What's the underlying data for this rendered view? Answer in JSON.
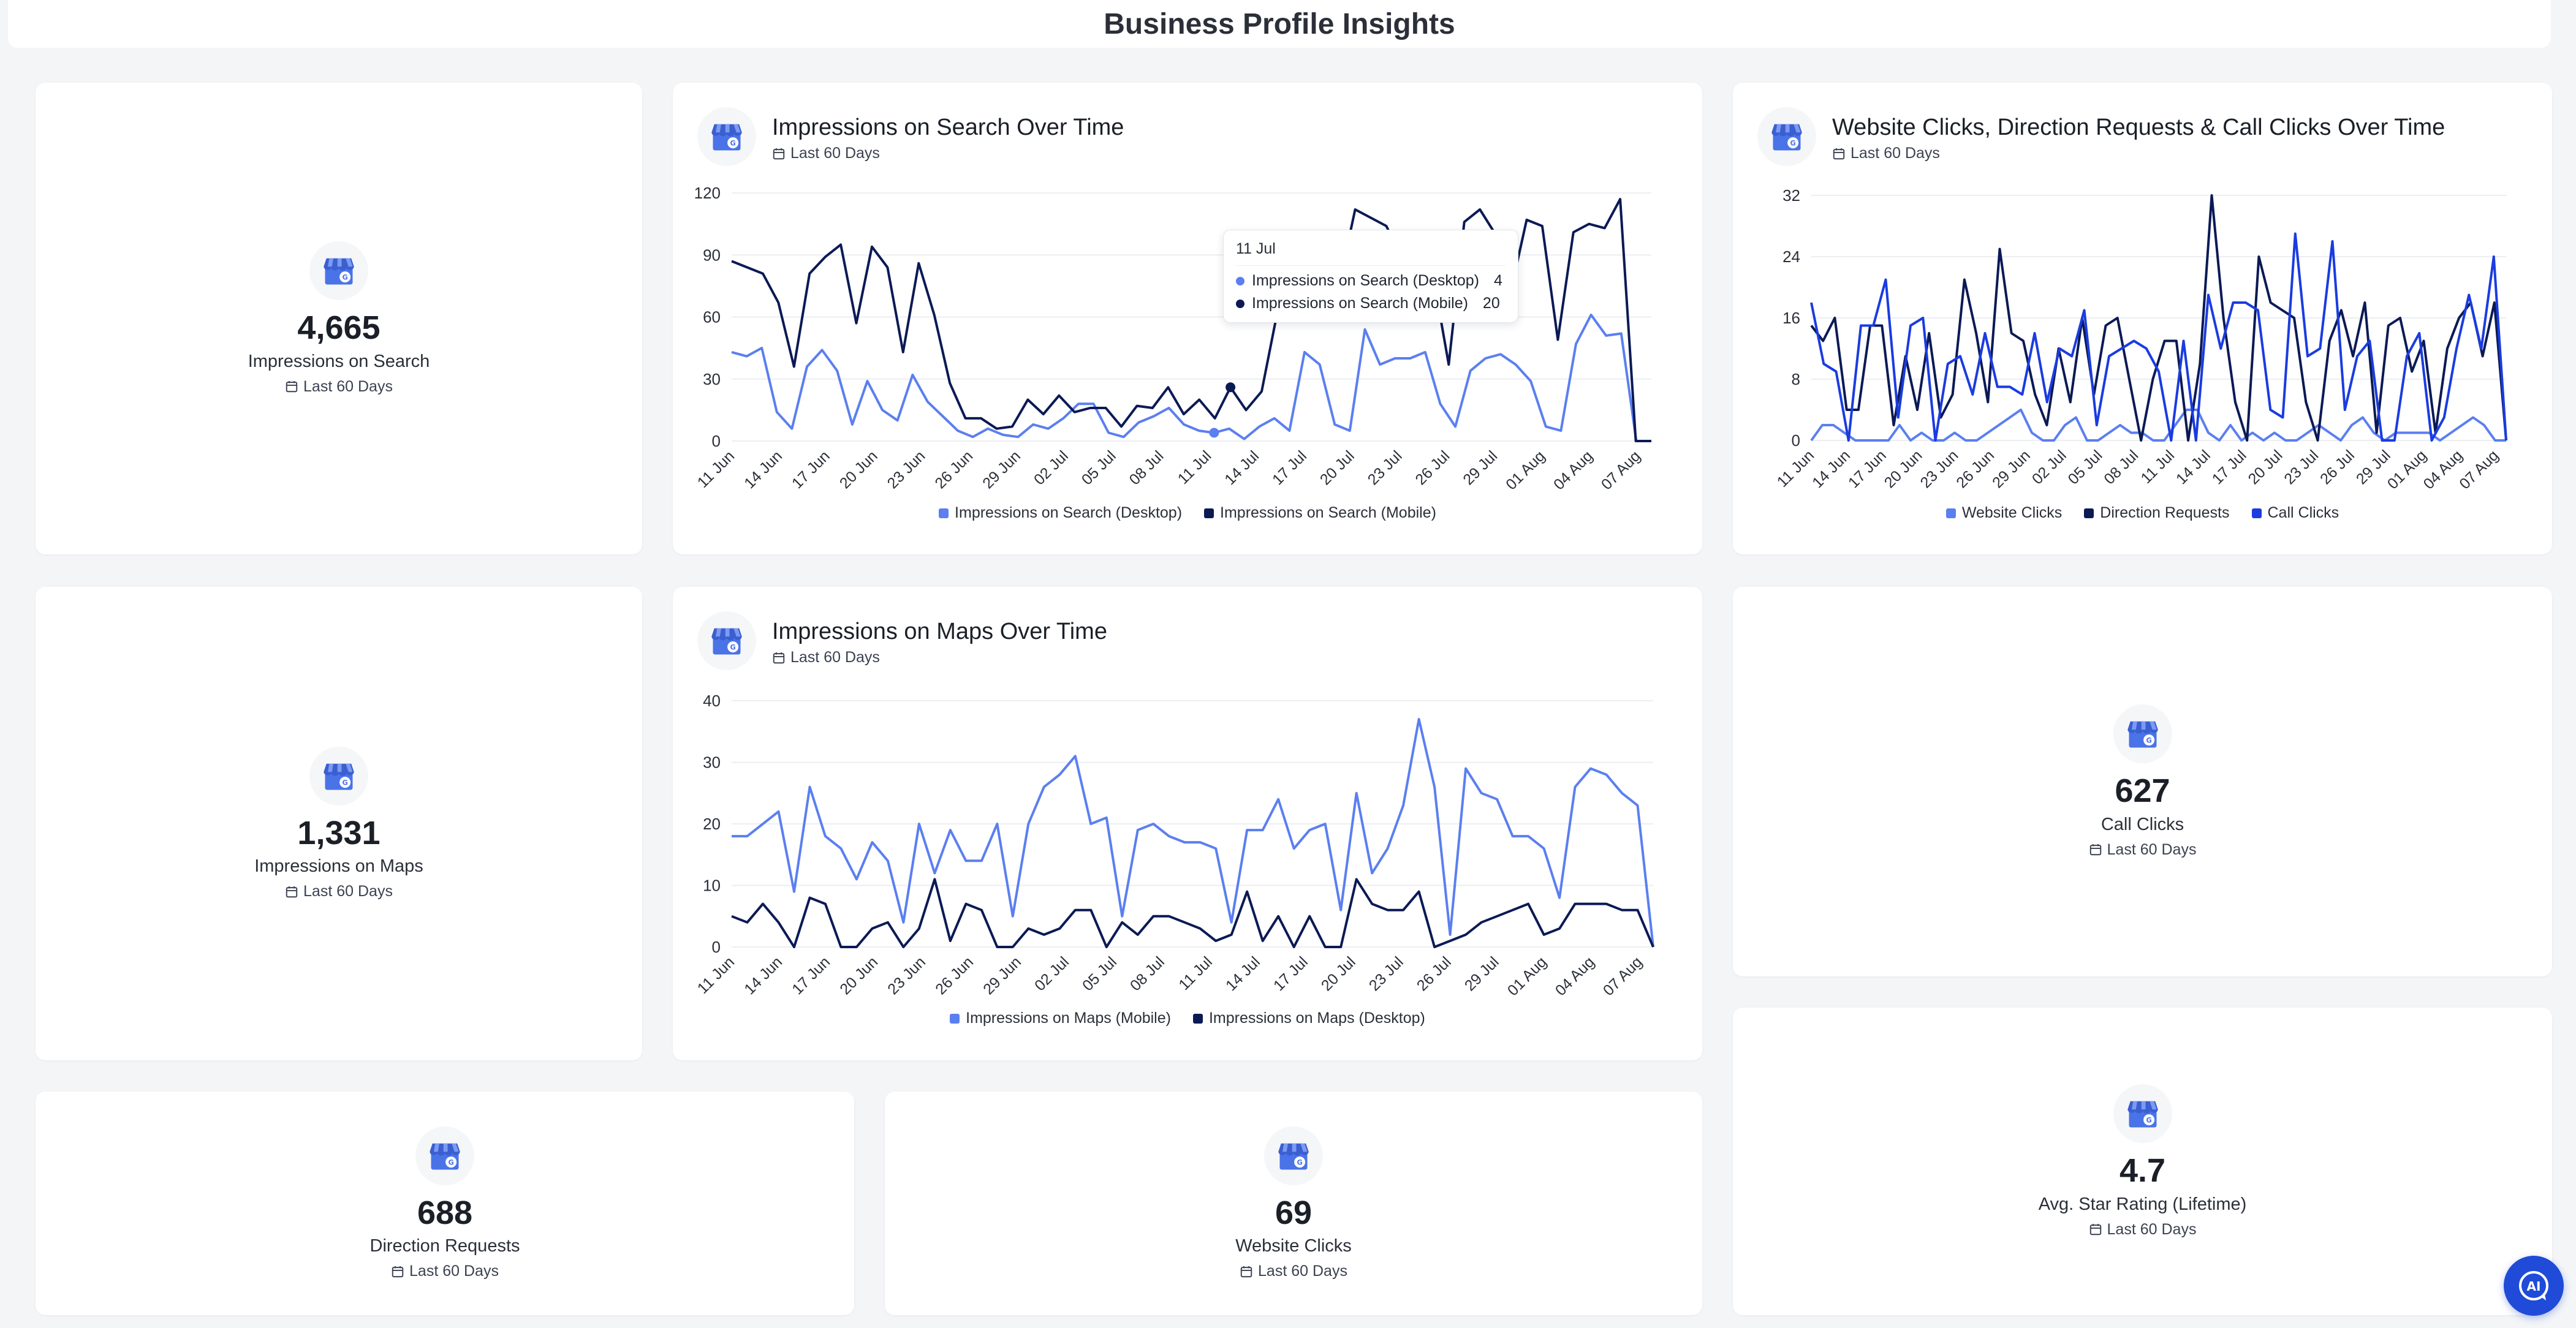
{
  "page": {
    "title": "Business Profile Insights"
  },
  "colors": {
    "light": "#5b7ff0",
    "dark": "#0b1a55",
    "blue": "#1a3ce0"
  },
  "period": "Last 60 Days",
  "stats": {
    "search": {
      "value": "4,665",
      "label": "Impressions on Search",
      "period": "Last 60 Days"
    },
    "maps": {
      "value": "1,331",
      "label": "Impressions on Maps",
      "period": "Last 60 Days"
    },
    "calls": {
      "value": "627",
      "label": "Call Clicks",
      "period": "Last 60 Days"
    },
    "directions": {
      "value": "688",
      "label": "Direction Requests",
      "period": "Last 60 Days"
    },
    "website": {
      "value": "69",
      "label": "Website Clicks",
      "period": "Last 60 Days"
    },
    "rating": {
      "value": "4.7",
      "label": "Avg. Star Rating (Lifetime)",
      "period": "Last 60 Days"
    }
  },
  "tooltip": {
    "title": "11 Jul",
    "rows": [
      {
        "label": "Impressions on Search (Desktop)",
        "value": "4"
      },
      {
        "label": "Impressions on Search (Mobile)",
        "value": "20"
      }
    ]
  },
  "ai_button": {
    "label": "AI"
  },
  "chart_data": [
    {
      "id": "search",
      "type": "line",
      "title": "Impressions on Search Over Time",
      "subtitle": "Last 60 Days",
      "x_ticks": [
        "11 Jun",
        "14 Jun",
        "17 Jun",
        "20 Jun",
        "23 Jun",
        "26 Jun",
        "29 Jun",
        "02 Jul",
        "05 Jul",
        "08 Jul",
        "11 Jul",
        "14 Jul",
        "17 Jul",
        "20 Jul",
        "23 Jul",
        "26 Jul",
        "29 Jul",
        "01 Aug",
        "04 Aug",
        "07 Aug"
      ],
      "ylim": [
        0,
        120
      ],
      "y_ticks": [
        0,
        30,
        60,
        90,
        120
      ],
      "grid": true,
      "legend": "bottom",
      "series": [
        {
          "name": "Impressions on Search (Desktop)",
          "color": "#5b7ff0",
          "values": [
            43,
            41,
            45,
            14,
            6,
            36,
            44,
            34,
            8,
            29,
            15,
            10,
            32,
            19,
            12,
            5,
            2,
            6,
            3,
            2,
            8,
            6,
            11,
            18,
            18,
            4,
            2,
            9,
            12,
            16,
            8,
            5,
            4,
            6,
            1,
            7,
            11,
            5,
            43,
            37,
            8,
            5,
            54,
            37,
            40,
            40,
            43,
            18,
            7,
            34,
            40,
            42,
            37,
            29,
            7,
            5,
            47,
            61,
            51,
            52,
            0,
            0
          ]
        },
        {
          "name": "Impressions on Search (Mobile)",
          "color": "#0b1a55",
          "values": [
            87,
            84,
            81,
            67,
            36,
            81,
            89,
            95,
            57,
            94,
            84,
            43,
            86,
            61,
            28,
            11,
            11,
            6,
            7,
            20,
            13,
            22,
            14,
            16,
            16,
            7,
            17,
            16,
            26,
            13,
            20,
            11,
            26,
            15,
            24,
            62,
            71,
            58,
            68,
            77,
            112,
            108,
            104,
            88,
            84,
            80,
            37,
            106,
            112,
            100,
            73,
            107,
            104,
            49,
            101,
            105,
            103,
            117,
            0,
            0
          ]
        }
      ]
    },
    {
      "id": "clicks",
      "type": "line",
      "title": "Website Clicks, Direction Requests & Call Clicks Over Time",
      "subtitle": "Last 60 Days",
      "x_ticks": [
        "11 Jun",
        "14 Jun",
        "17 Jun",
        "20 Jun",
        "23 Jun",
        "26 Jun",
        "29 Jun",
        "02 Jul",
        "05 Jul",
        "08 Jul",
        "11 Jul",
        "14 Jul",
        "17 Jul",
        "20 Jul",
        "23 Jul",
        "26 Jul",
        "29 Jul",
        "01 Aug",
        "04 Aug",
        "07 Aug"
      ],
      "ylim": [
        0,
        32
      ],
      "y_ticks": [
        0,
        8,
        16,
        24,
        32
      ],
      "grid": true,
      "legend": "bottom",
      "series": [
        {
          "name": "Website Clicks",
          "color": "#5b7ff0",
          "values": [
            0,
            2,
            2,
            1,
            0,
            0,
            0,
            0,
            2,
            0,
            1,
            0,
            0,
            1,
            0,
            0,
            1,
            2,
            3,
            4,
            1,
            0,
            0,
            2,
            3,
            0,
            0,
            1,
            2,
            1,
            1,
            0,
            0,
            2,
            4,
            4,
            1,
            0,
            2,
            0,
            1,
            0,
            1,
            0,
            0,
            1,
            2,
            1,
            0,
            2,
            3,
            1,
            0,
            1,
            1,
            1,
            1,
            0,
            1,
            2,
            3,
            2,
            0,
            0
          ]
        },
        {
          "name": "Direction Requests",
          "color": "#0b1a55",
          "values": [
            15,
            13,
            16,
            4,
            4,
            15,
            15,
            2,
            11,
            4,
            14,
            3,
            6,
            21,
            14,
            5,
            25,
            14,
            13,
            6,
            2,
            12,
            5,
            16,
            6,
            15,
            16,
            8,
            0,
            8,
            13,
            13,
            0,
            10,
            32,
            16,
            5,
            0,
            24,
            18,
            17,
            16,
            5,
            0,
            13,
            17,
            11,
            18,
            1,
            15,
            16,
            9,
            13,
            1,
            12,
            16,
            18,
            11,
            18,
            0
          ]
        },
        {
          "name": "Call Clicks",
          "color": "#1a3ce0",
          "values": [
            18,
            10,
            9,
            0,
            15,
            15,
            21,
            3,
            15,
            16,
            0,
            10,
            11,
            6,
            14,
            7,
            7,
            6,
            14,
            5,
            12,
            11,
            17,
            2,
            11,
            12,
            13,
            12,
            9,
            0,
            13,
            0,
            19,
            12,
            18,
            18,
            17,
            4,
            3,
            27,
            11,
            12,
            26,
            4,
            11,
            13,
            0,
            0,
            11,
            14,
            0,
            3,
            12,
            19,
            12,
            24,
            0
          ]
        }
      ]
    },
    {
      "id": "maps",
      "type": "line",
      "title": "Impressions on Maps Over Time",
      "subtitle": "Last 60 Days",
      "x_ticks": [
        "11 Jun",
        "14 Jun",
        "17 Jun",
        "20 Jun",
        "23 Jun",
        "26 Jun",
        "29 Jun",
        "02 Jul",
        "05 Jul",
        "08 Jul",
        "11 Jul",
        "14 Jul",
        "17 Jul",
        "20 Jul",
        "23 Jul",
        "26 Jul",
        "29 Jul",
        "01 Aug",
        "04 Aug",
        "07 Aug"
      ],
      "ylim": [
        0,
        40
      ],
      "y_ticks": [
        0,
        10,
        20,
        30,
        40
      ],
      "grid": true,
      "legend": "bottom",
      "series": [
        {
          "name": "Impressions on Maps (Mobile)",
          "color": "#5b7ff0",
          "values": [
            18,
            18,
            20,
            22,
            9,
            26,
            18,
            16,
            11,
            17,
            14,
            4,
            20,
            12,
            19,
            14,
            14,
            20,
            5,
            20,
            26,
            28,
            31,
            20,
            21,
            5,
            19,
            20,
            18,
            17,
            17,
            16,
            4,
            19,
            19,
            24,
            16,
            19,
            20,
            6,
            25,
            12,
            16,
            23,
            37,
            26,
            2,
            29,
            25,
            24,
            18,
            18,
            16,
            8,
            26,
            29,
            28,
            25,
            23,
            0
          ]
        },
        {
          "name": "Impressions on Maps (Desktop)",
          "color": "#0b1a55",
          "values": [
            5,
            4,
            7,
            4,
            0,
            8,
            7,
            0,
            0,
            3,
            4,
            0,
            3,
            11,
            1,
            7,
            6,
            0,
            0,
            3,
            2,
            3,
            6,
            6,
            0,
            4,
            2,
            5,
            5,
            4,
            3,
            1,
            2,
            9,
            1,
            5,
            0,
            5,
            0,
            0,
            11,
            7,
            6,
            6,
            9,
            0,
            1,
            2,
            4,
            5,
            6,
            7,
            2,
            3,
            7,
            7,
            7,
            6,
            6,
            0
          ]
        }
      ]
    }
  ]
}
